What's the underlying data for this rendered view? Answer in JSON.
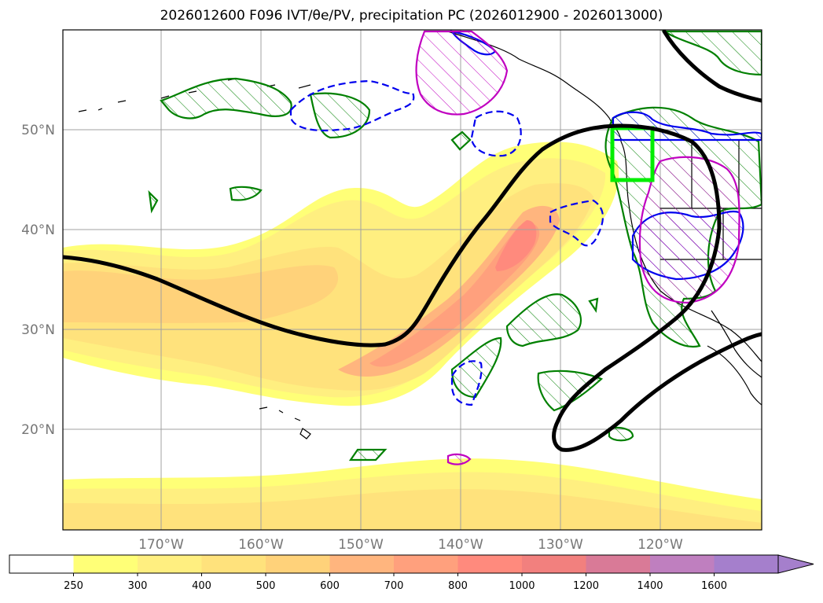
{
  "title": "2026012600 F096 IVT/θe/PV, precipitation PC (2026012900 - 2026013000)",
  "lat_labels": [
    "50°N",
    "40°N",
    "30°N",
    "20°N"
  ],
  "lon_labels": [
    "170°W",
    "160°W",
    "150°W",
    "140°W",
    "130°W",
    "120°W"
  ],
  "colorbar": {
    "ticks": [
      "250",
      "300",
      "400",
      "500",
      "600",
      "700",
      "800",
      "1000",
      "1200",
      "1400",
      "1600"
    ],
    "colors": [
      "#ffffff",
      "#ffff77",
      "#ffef80",
      "#ffe27c",
      "#ffd27a",
      "#ffb57e",
      "#ffa07d",
      "#ff8a7d",
      "#f2807e",
      "#d97a97",
      "#bf7fbf",
      "#a57fcc"
    ]
  },
  "legend_colors": {
    "ivt_contour": "#000000",
    "precip_positive": "#008000",
    "precip_negative": "#0000ee",
    "pv": "#c000c0",
    "focus_box": "#00ee00"
  }
}
